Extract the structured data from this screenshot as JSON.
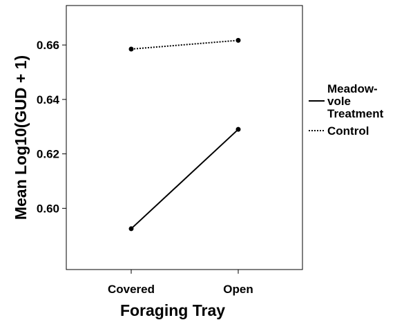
{
  "chart_data": {
    "type": "line",
    "title": "",
    "xlabel": "Foraging Tray",
    "ylabel": "Mean Log10(GUD + 1)",
    "categories": [
      "Covered",
      "Open"
    ],
    "ylim": [
      0.5775,
      0.6745
    ],
    "yticks": [
      0.6,
      0.62,
      0.64,
      0.66
    ],
    "ytick_labels": [
      "0.60",
      "0.62",
      "0.64",
      "0.66"
    ],
    "grid": false,
    "legend_position": "right",
    "series": [
      {
        "name": "Meadow-vole Treatment",
        "name_lines": [
          "Meadow-",
          "vole",
          "Treatment"
        ],
        "line_style": "solid",
        "color": "#000000",
        "values": [
          0.5925,
          0.629
        ]
      },
      {
        "name": "Control",
        "name_lines": [
          "Control"
        ],
        "line_style": "dotted",
        "color": "#000000",
        "values": [
          0.6585,
          0.6617
        ]
      }
    ]
  }
}
